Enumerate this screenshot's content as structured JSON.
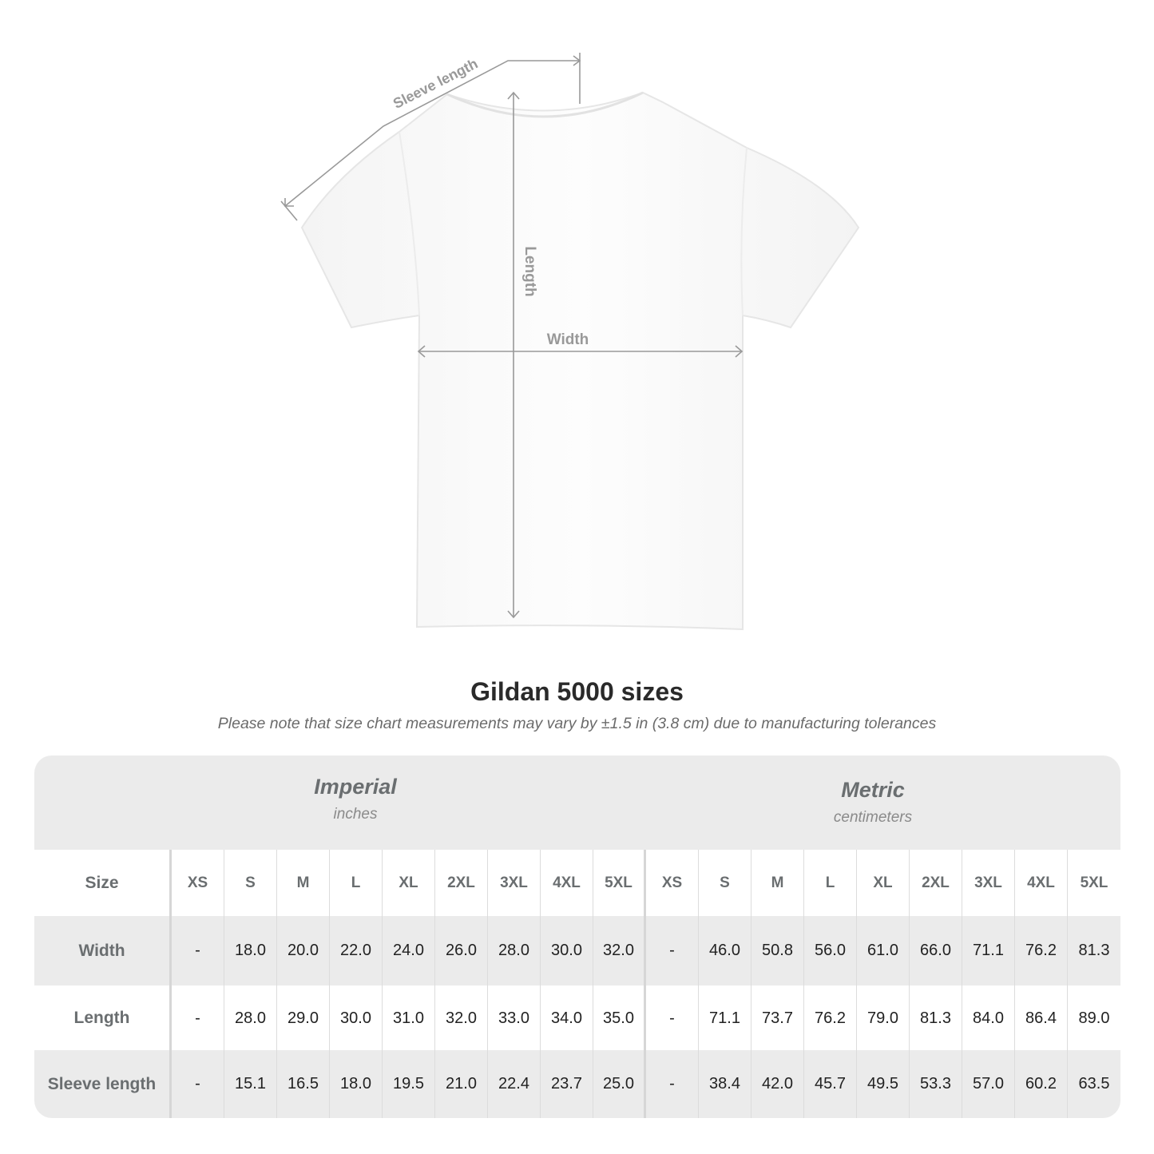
{
  "diagram": {
    "labels": {
      "sleeve": "Sleeve length",
      "length": "Length",
      "width": "Width"
    },
    "line_color": "#999999"
  },
  "chart_data": {
    "type": "table",
    "title": "Gildan 5000 sizes",
    "subtitle": "Please note that size chart measurements may vary by ±1.5 in (3.8 cm) due to manufacturing tolerances",
    "systems": [
      {
        "name": "Imperial",
        "unit": "inches"
      },
      {
        "name": "Metric",
        "unit": "centimeters"
      }
    ],
    "size_label": "Size",
    "sizes": [
      "XS",
      "S",
      "M",
      "L",
      "XL",
      "2XL",
      "3XL",
      "4XL",
      "5XL"
    ],
    "rows": [
      {
        "label": "Width",
        "imperial": [
          "-",
          "18.0",
          "20.0",
          "22.0",
          "24.0",
          "26.0",
          "28.0",
          "30.0",
          "32.0"
        ],
        "metric": [
          "-",
          "46.0",
          "50.8",
          "56.0",
          "61.0",
          "66.0",
          "71.1",
          "76.2",
          "81.3"
        ]
      },
      {
        "label": "Length",
        "imperial": [
          "-",
          "28.0",
          "29.0",
          "30.0",
          "31.0",
          "32.0",
          "33.0",
          "34.0",
          "35.0"
        ],
        "metric": [
          "-",
          "71.1",
          "73.7",
          "76.2",
          "79.0",
          "81.3",
          "84.0",
          "86.4",
          "89.0"
        ]
      },
      {
        "label": "Sleeve length",
        "imperial": [
          "-",
          "15.1",
          "16.5",
          "18.0",
          "19.5",
          "21.0",
          "22.4",
          "23.7",
          "25.0"
        ],
        "metric": [
          "-",
          "38.4",
          "42.0",
          "45.7",
          "49.5",
          "53.3",
          "57.0",
          "60.2",
          "63.5"
        ]
      }
    ]
  }
}
